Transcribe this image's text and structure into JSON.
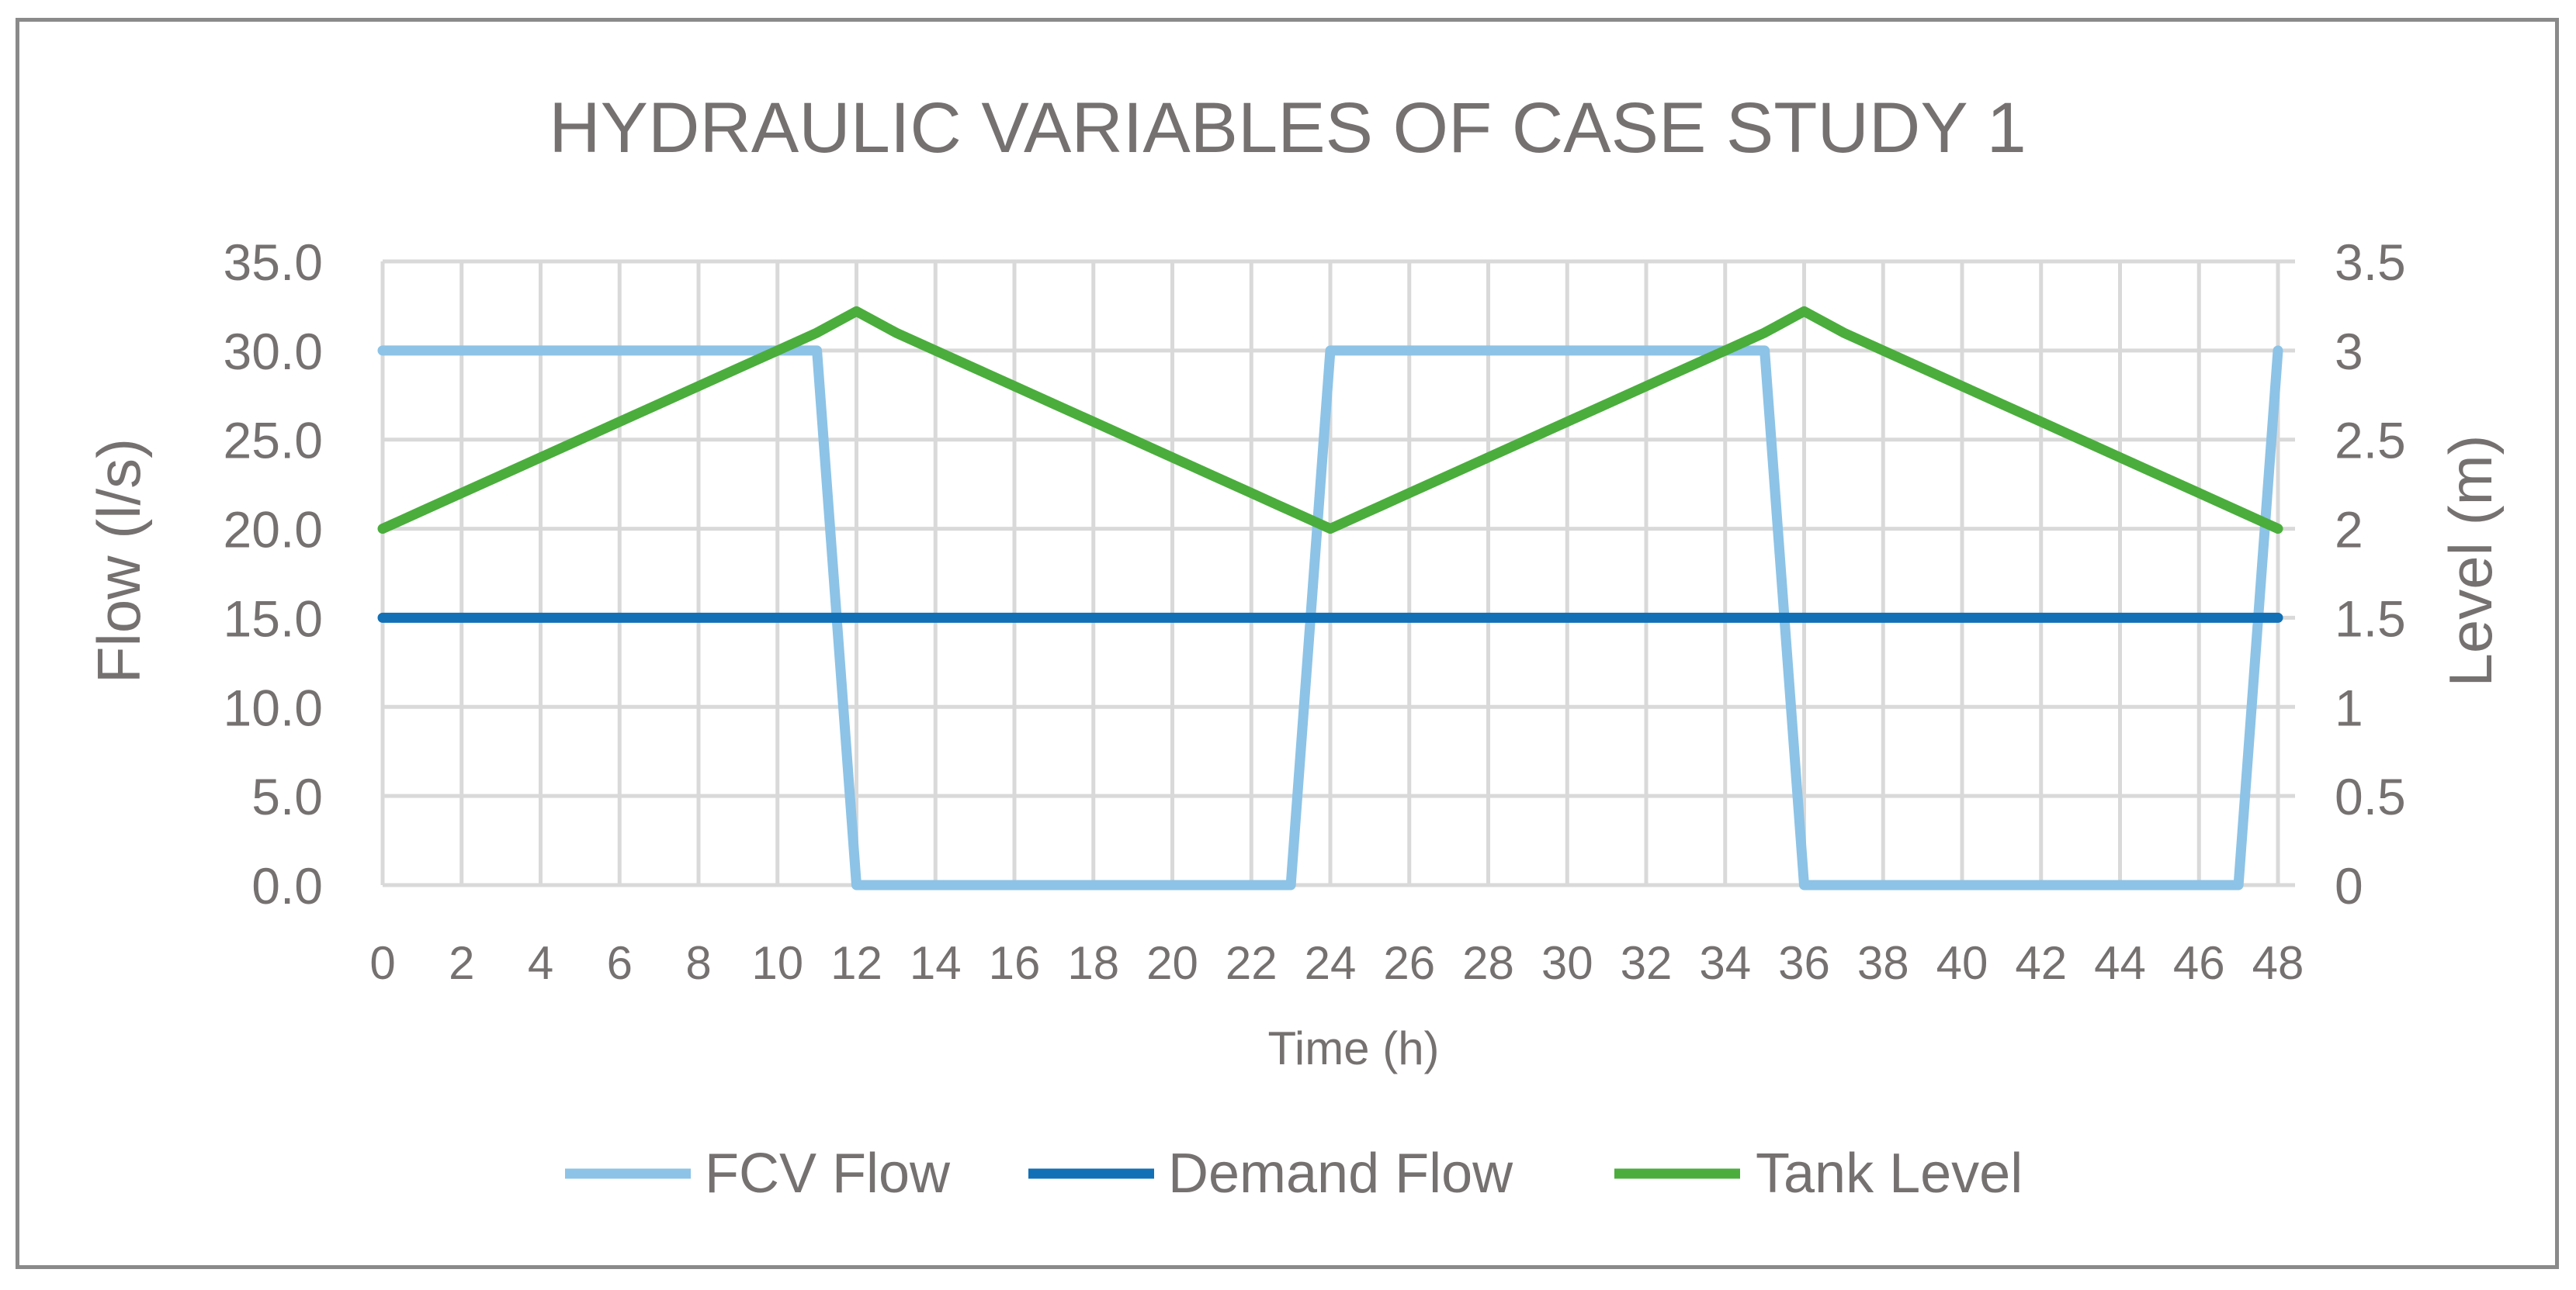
{
  "chart_data": {
    "type": "line",
    "title": "HYDRAULIC VARIABLES OF CASE STUDY 1",
    "xlabel": "Time (h)",
    "ylabel_left": "Flow (l/s)",
    "ylabel_right": "Level (m)",
    "x": [
      0,
      1,
      2,
      3,
      4,
      5,
      6,
      7,
      8,
      9,
      10,
      11,
      12,
      13,
      14,
      15,
      16,
      17,
      18,
      19,
      20,
      21,
      22,
      23,
      24,
      25,
      26,
      27,
      28,
      29,
      30,
      31,
      32,
      33,
      34,
      35,
      36,
      37,
      38,
      39,
      40,
      41,
      42,
      43,
      44,
      45,
      46,
      47,
      48
    ],
    "x_ticks": [
      "0",
      "2",
      "4",
      "6",
      "8",
      "10",
      "12",
      "14",
      "16",
      "18",
      "20",
      "22",
      "24",
      "26",
      "28",
      "30",
      "32",
      "34",
      "36",
      "38",
      "40",
      "42",
      "44",
      "46",
      "48"
    ],
    "xlim": [
      0,
      48
    ],
    "ylim_left": [
      0,
      35
    ],
    "yticks_left": [
      "0.0",
      "5.0",
      "10.0",
      "15.0",
      "20.0",
      "25.0",
      "30.0",
      "35.0"
    ],
    "ylim_right": [
      0,
      3.5
    ],
    "yticks_right": [
      "0",
      "0.5",
      "1",
      "1.5",
      "2",
      "2.5",
      "3",
      "3.5"
    ],
    "grid": true,
    "legend_position": "bottom",
    "series": [
      {
        "name": "FCV Flow",
        "axis": "left",
        "color": "#8dc3e6",
        "values": [
          30,
          30,
          30,
          30,
          30,
          30,
          30,
          30,
          30,
          30,
          30,
          30,
          0,
          0,
          0,
          0,
          0,
          0,
          0,
          0,
          0,
          0,
          0,
          0,
          30,
          30,
          30,
          30,
          30,
          30,
          30,
          30,
          30,
          30,
          30,
          30,
          0,
          0,
          0,
          0,
          0,
          0,
          0,
          0,
          0,
          0,
          0,
          0,
          30
        ]
      },
      {
        "name": "Demand Flow",
        "axis": "left",
        "color": "#1170b6",
        "values": [
          15,
          15,
          15,
          15,
          15,
          15,
          15,
          15,
          15,
          15,
          15,
          15,
          15,
          15,
          15,
          15,
          15,
          15,
          15,
          15,
          15,
          15,
          15,
          15,
          15,
          15,
          15,
          15,
          15,
          15,
          15,
          15,
          15,
          15,
          15,
          15,
          15,
          15,
          15,
          15,
          15,
          15,
          15,
          15,
          15,
          15,
          15,
          15,
          15
        ]
      },
      {
        "name": "Tank Level",
        "axis": "right",
        "color": "#4aad3c",
        "values": [
          2.0,
          2.1,
          2.2,
          2.3,
          2.4,
          2.5,
          2.6,
          2.7,
          2.8,
          2.9,
          3.0,
          3.1,
          3.22,
          3.1,
          3.0,
          2.9,
          2.8,
          2.7,
          2.6,
          2.5,
          2.4,
          2.3,
          2.2,
          2.1,
          2.0,
          2.1,
          2.2,
          2.3,
          2.4,
          2.5,
          2.6,
          2.7,
          2.8,
          2.9,
          3.0,
          3.1,
          3.22,
          3.1,
          3.0,
          2.9,
          2.8,
          2.7,
          2.6,
          2.5,
          2.4,
          2.3,
          2.2,
          2.1,
          2.0
        ]
      }
    ]
  }
}
